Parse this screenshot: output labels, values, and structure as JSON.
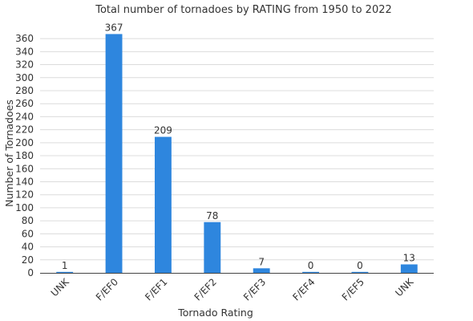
{
  "chart_data": {
    "type": "bar",
    "title": "Total number of tornadoes by RATING from 1950 to 2022",
    "xlabel": "Tornado Rating",
    "ylabel": "Number of Tornadoes",
    "categories": [
      "UNK",
      "F/EF0",
      "F/EF1",
      "F/EF2",
      "F/EF3",
      "F/EF4",
      "F/EF5",
      "UNK"
    ],
    "values": [
      1,
      367,
      209,
      78,
      7,
      0,
      0,
      13
    ],
    "data_labels": [
      "1",
      "367",
      "209",
      "78",
      "7",
      "0",
      "0",
      "13"
    ],
    "ylim": [
      0,
      370
    ],
    "yticks": [
      0,
      20,
      40,
      60,
      80,
      100,
      120,
      140,
      160,
      180,
      200,
      220,
      240,
      260,
      280,
      300,
      320,
      340,
      360
    ],
    "grid": true,
    "legend": "none",
    "bar_color": "#2e86de"
  }
}
